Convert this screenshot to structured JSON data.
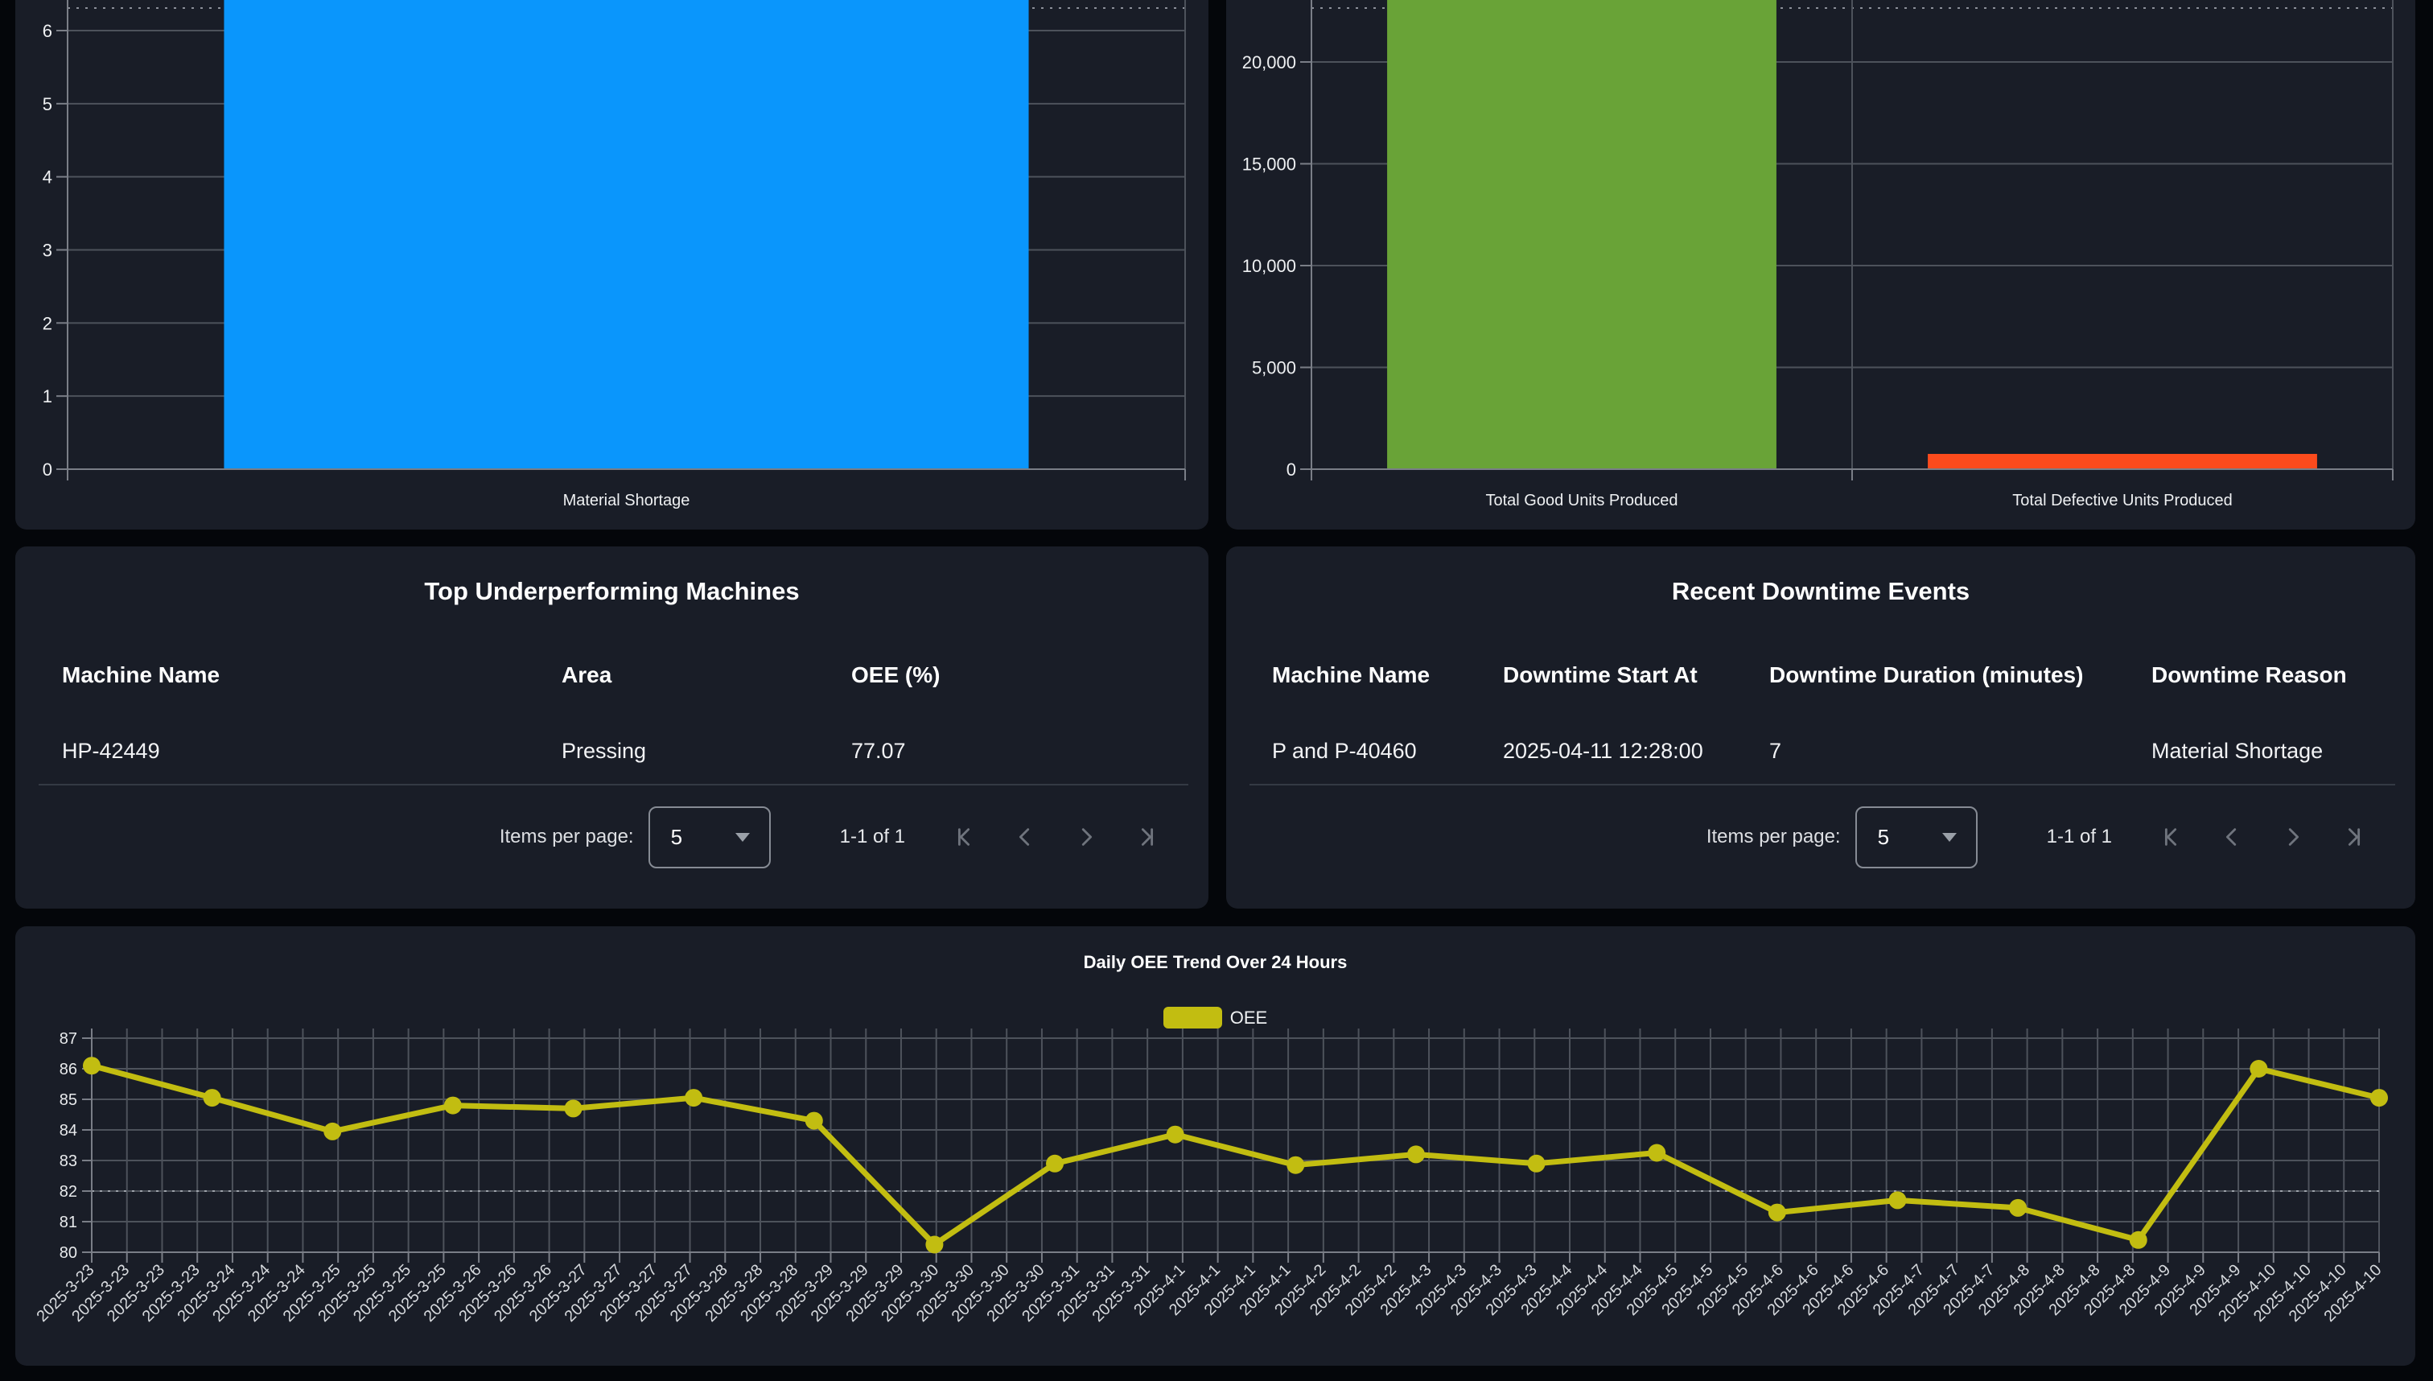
{
  "colors": {
    "page_bg": "#04060a",
    "panel_bg": "#191d27",
    "grid": "#4d525b",
    "axis": "#7a7e87",
    "dotted": "#8c9099",
    "blue_bar": "#0a96fc",
    "green_bar": "#69a337",
    "red_bar": "#fb4b1d",
    "line_yellow": "#c2bd11"
  },
  "chart_data": [
    {
      "id": "downtime-reason-count",
      "type": "bar",
      "categories": [
        "Material Shortage"
      ],
      "values": [
        null
      ],
      "clipped": [
        true
      ],
      "bar_colors": [
        "#0a96fc"
      ],
      "y_ticks": [
        0,
        1,
        2,
        3,
        4,
        5,
        6
      ],
      "y_tick_labels": [
        "0",
        "1",
        "2",
        "3",
        "4",
        "5",
        "6"
      ],
      "ylim": [
        0,
        6
      ],
      "grid": true,
      "note": "bar extends above visible axis (view cut off at top)"
    },
    {
      "id": "production-units",
      "type": "bar",
      "categories": [
        "Total Good Units Produced",
        "Total Defective Units Produced"
      ],
      "values": [
        null,
        750
      ],
      "clipped": [
        true,
        false
      ],
      "bar_colors": [
        "#69a337",
        "#fb4b1d"
      ],
      "y_ticks": [
        0,
        5000,
        10000,
        15000,
        20000
      ],
      "y_tick_labels": [
        "0",
        "5,000",
        "10,000",
        "15,000",
        "20,000"
      ],
      "ylim": [
        0,
        20000
      ],
      "grid": true,
      "note": "green bar extends above visible axis (view cut off at top)"
    },
    {
      "id": "oee-trend",
      "type": "line",
      "title": "Daily OEE Trend Over 24 Hours",
      "series": [
        {
          "name": "OEE",
          "values": [
            86.1,
            85.05,
            83.95,
            84.8,
            84.7,
            85.05,
            84.3,
            80.25,
            82.9,
            83.85,
            82.85,
            83.2,
            82.9,
            83.25,
            81.3,
            81.7,
            81.45,
            80.4,
            86.0,
            85.05
          ]
        }
      ],
      "x_tick_labels": [
        "2025-3-23",
        "2025-3-23",
        "2025-3-23",
        "2025-3-23",
        "2025-3-24",
        "2025-3-24",
        "2025-3-24",
        "2025-3-25",
        "2025-3-25",
        "2025-3-25",
        "2025-3-25",
        "2025-3-26",
        "2025-3-26",
        "2025-3-26",
        "2025-3-27",
        "2025-3-27",
        "2025-3-27",
        "2025-3-27",
        "2025-3-28",
        "2025-3-28",
        "2025-3-28",
        "2025-3-29",
        "2025-3-29",
        "2025-3-29",
        "2025-3-30",
        "2025-3-30",
        "2025-3-30",
        "2025-3-30",
        "2025-3-31",
        "2025-3-31",
        "2025-3-31",
        "2025-4-1",
        "2025-4-1",
        "2025-4-1",
        "2025-4-1",
        "2025-4-2",
        "2025-4-2",
        "2025-4-2",
        "2025-4-3",
        "2025-4-3",
        "2025-4-3",
        "2025-4-3",
        "2025-4-4",
        "2025-4-4",
        "2025-4-4",
        "2025-4-5",
        "2025-4-5",
        "2025-4-5",
        "2025-4-6",
        "2025-4-6",
        "2025-4-6",
        "2025-4-6",
        "2025-4-7",
        "2025-4-7",
        "2025-4-7",
        "2025-4-8",
        "2025-4-8",
        "2025-4-8",
        "2025-4-8",
        "2025-4-9",
        "2025-4-9",
        "2025-4-9",
        "2025-4-10",
        "2025-4-10",
        "2025-4-10",
        "2025-4-10"
      ],
      "y_ticks": [
        80,
        81,
        82,
        83,
        84,
        85,
        86,
        87
      ],
      "ylim": [
        80,
        87
      ],
      "grid": true,
      "legend_position": "top",
      "dotted_reference_line_y": 82
    }
  ],
  "tables": {
    "underperforming": {
      "title": "Top Underperforming Machines",
      "columns": [
        "Machine Name",
        "Area",
        "OEE (%)"
      ],
      "rows": [
        [
          "HP-42449",
          "Pressing",
          "77.07"
        ]
      ],
      "pagination": {
        "label": "Items per page:",
        "page_size": "5",
        "range": "1-1 of 1",
        "icons": [
          "first-page-icon",
          "previous-page-icon",
          "next-page-icon",
          "last-page-icon"
        ]
      }
    },
    "downtime_events": {
      "title": "Recent Downtime Events",
      "columns": [
        "Machine Name",
        "Downtime Start At",
        "Downtime Duration (minutes)",
        "Downtime Reason"
      ],
      "rows": [
        [
          "P and P-40460",
          "2025-04-11 12:28:00",
          "7",
          "Material Shortage"
        ]
      ],
      "pagination": {
        "label": "Items per page:",
        "page_size": "5",
        "range": "1-1 of 1",
        "icons": [
          "first-page-icon",
          "previous-page-icon",
          "next-page-icon",
          "last-page-icon"
        ]
      }
    }
  }
}
